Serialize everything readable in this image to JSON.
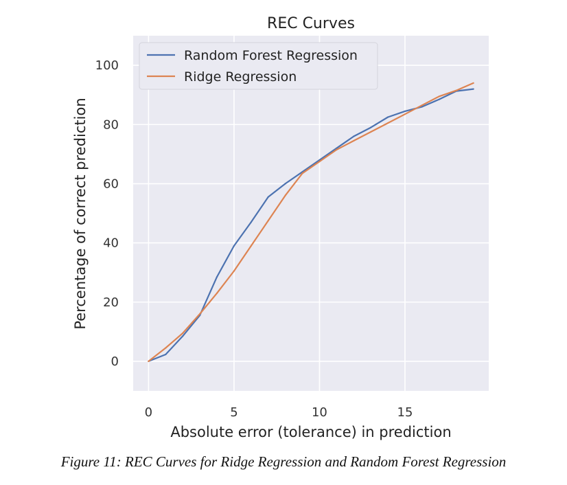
{
  "chart_data": {
    "type": "line",
    "title": "REC Curves",
    "xlabel": "Absolute error (tolerance) in prediction",
    "ylabel": "Percentage of correct prediction",
    "xlim": [
      -0.9,
      19.9
    ],
    "ylim": [
      -10,
      110
    ],
    "xticks": [
      0,
      5,
      10,
      15
    ],
    "yticks": [
      0,
      20,
      40,
      60,
      80,
      100
    ],
    "grid": true,
    "legend_position": "top-left",
    "series": [
      {
        "name": "Random Forest Regression",
        "color": "#4c72b0",
        "x": [
          0,
          1,
          2,
          3,
          4,
          5,
          6,
          7,
          8,
          9,
          10,
          11,
          12,
          13,
          14,
          15,
          16,
          17,
          18,
          19
        ],
        "y": [
          0,
          2.3,
          8.5,
          15.5,
          28.5,
          39,
          47,
          55.5,
          60,
          64,
          68,
          72,
          76,
          79,
          82.5,
          84.5,
          86,
          88.5,
          91.3,
          92
        ]
      },
      {
        "name": "Ridge Regression",
        "color": "#dd8452",
        "x": [
          0,
          1,
          2,
          3,
          4,
          5,
          6,
          7,
          8,
          9,
          10,
          11,
          12,
          13,
          14,
          15,
          16,
          17,
          18,
          19
        ],
        "y": [
          0,
          4.5,
          9.5,
          16,
          23,
          30.5,
          39,
          47.5,
          56,
          63.5,
          67.5,
          71.5,
          74.5,
          77.5,
          80.5,
          83.5,
          86.5,
          89.5,
          91.5,
          94
        ]
      }
    ]
  },
  "caption": "Figure 11: REC Curves for Ridge Regression and Random Forest Regression"
}
